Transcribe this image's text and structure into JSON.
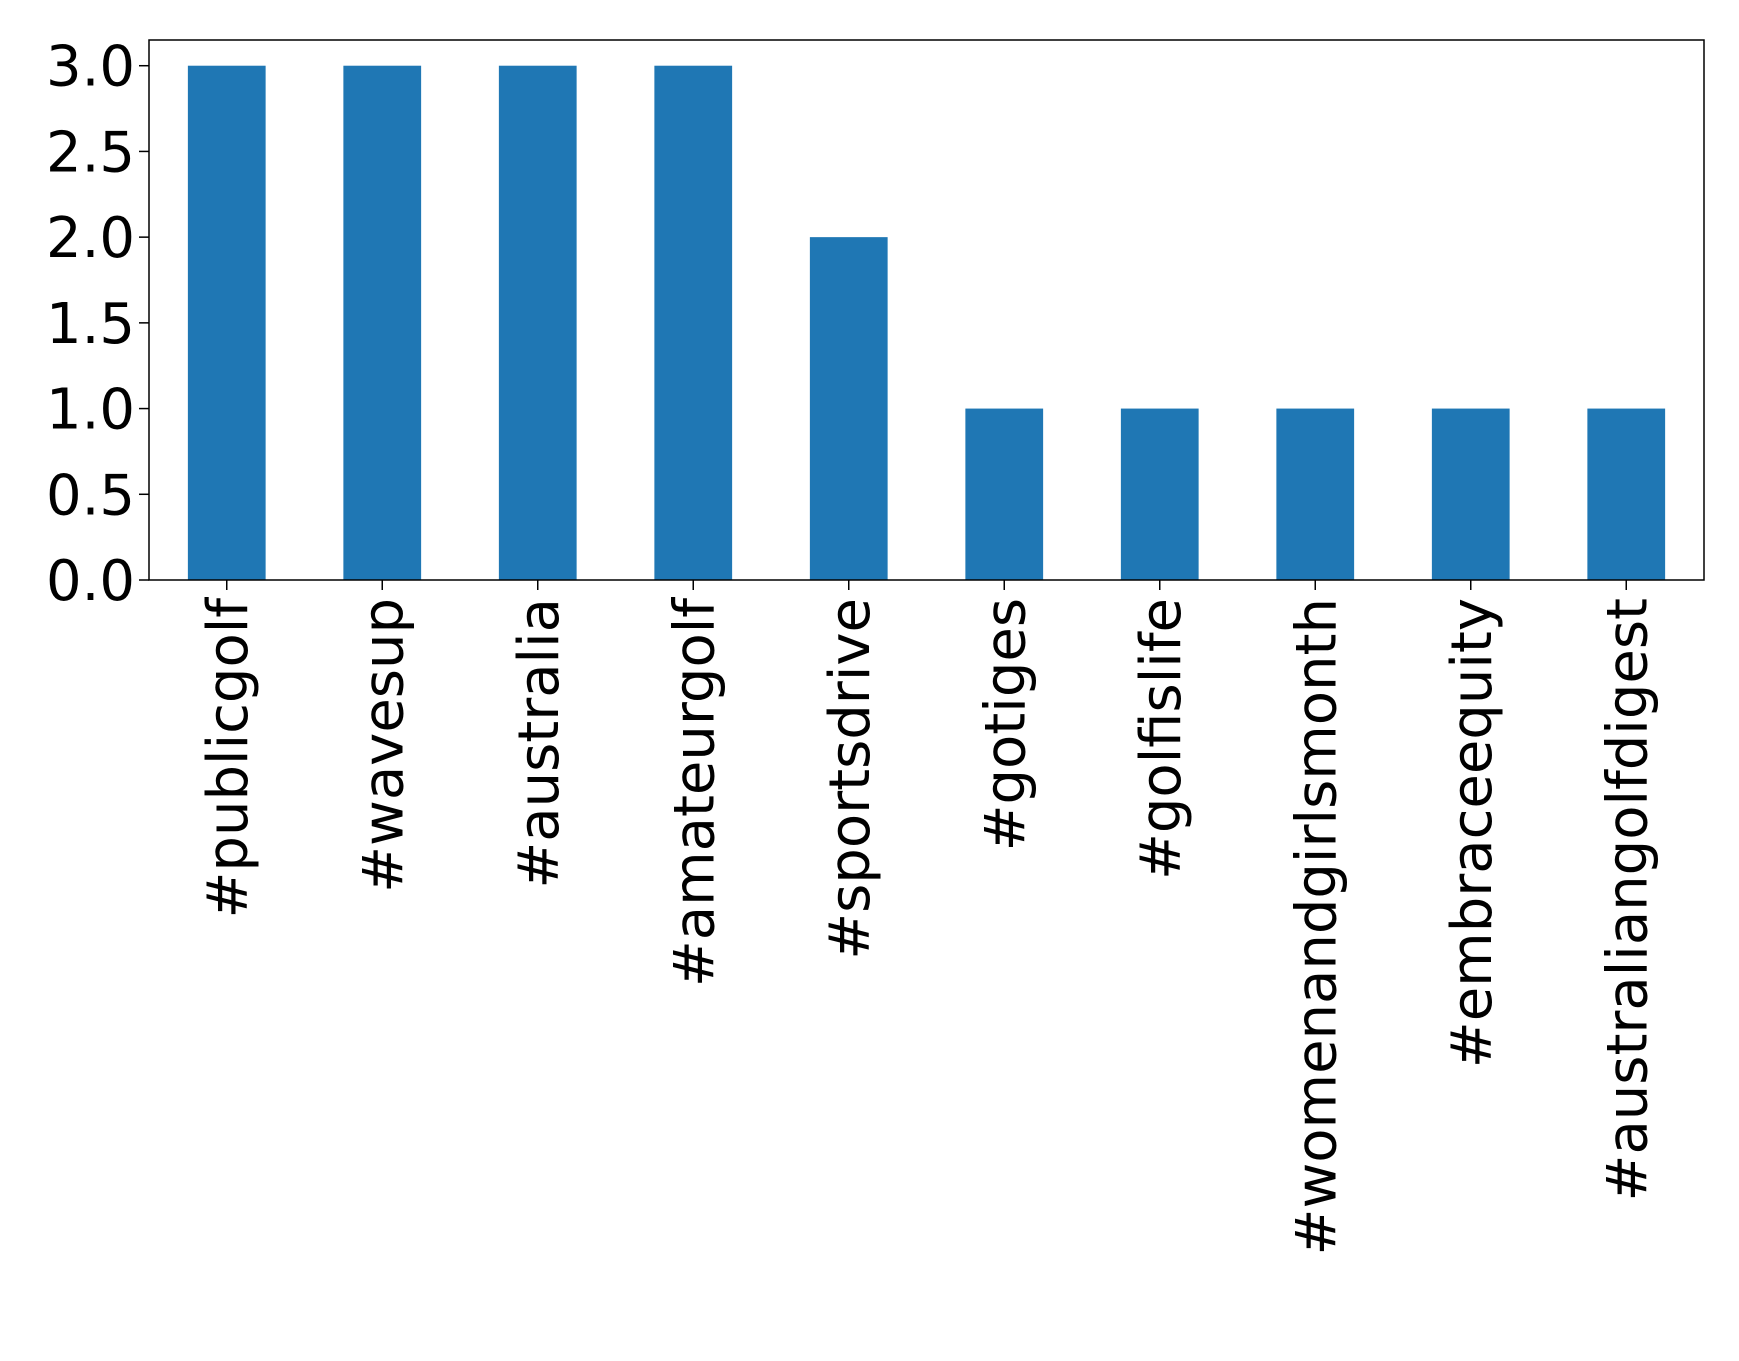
{
  "chart_data": {
    "type": "bar",
    "title": "",
    "xlabel": "",
    "ylabel": "",
    "categories": [
      "#publicgolf",
      "#wavesup",
      "#australia",
      "#amateurgolf",
      "#sportsdrive",
      "#gotiges",
      "#golfislife",
      "#womenandgirlsmonth",
      "#embraceequity",
      "#australiangolfdigest"
    ],
    "values": [
      3,
      3,
      3,
      3,
      2,
      1,
      1,
      1,
      1,
      1
    ],
    "ylim": [
      0,
      3.15
    ],
    "yticks": [
      0.0,
      0.5,
      1.0,
      1.5,
      2.0,
      2.5,
      3.0
    ],
    "ytick_labels": [
      "0.0",
      "0.5",
      "1.0",
      "1.5",
      "2.0",
      "2.5",
      "3.0"
    ],
    "bar_color": "#1f77b4",
    "grid": false,
    "legend": "none"
  }
}
